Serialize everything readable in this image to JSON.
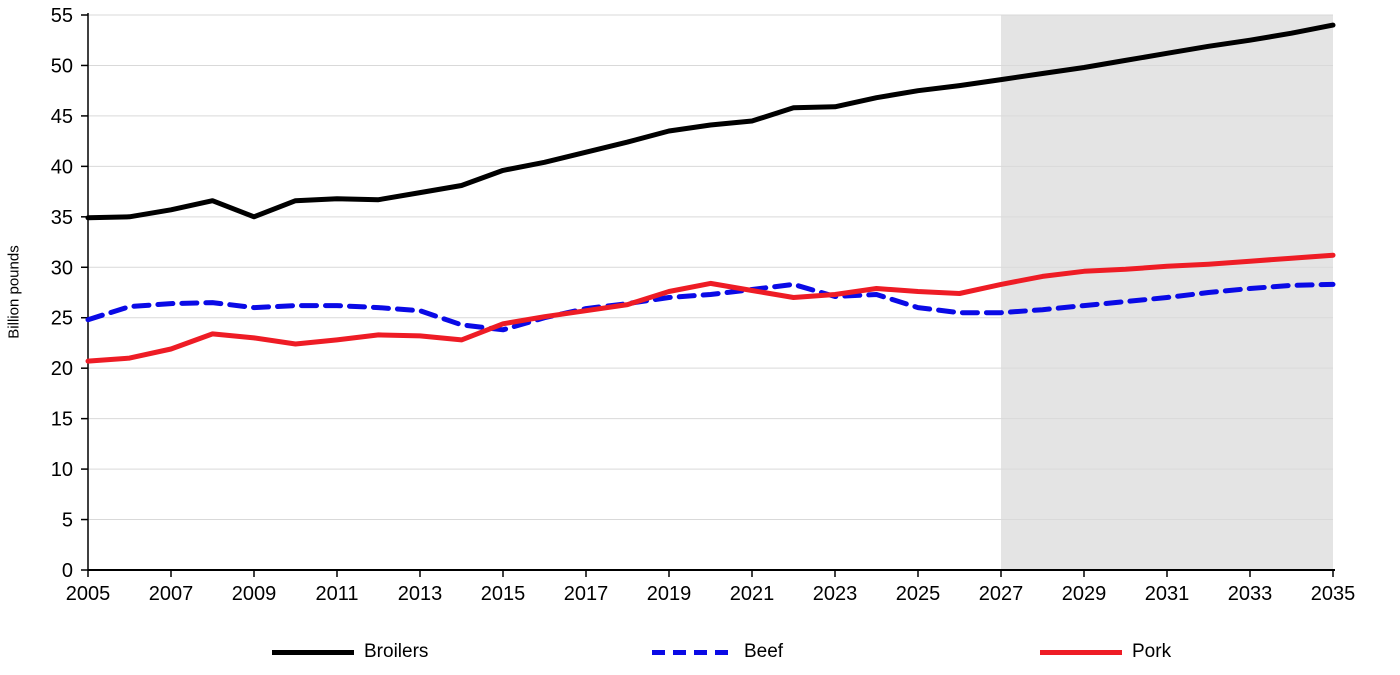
{
  "chart_data": {
    "type": "line",
    "title": "",
    "ylabel": "Billion pounds",
    "xlabel": "",
    "ylim": [
      0,
      55
    ],
    "ytick_step": 5,
    "x": [
      2005,
      2006,
      2007,
      2008,
      2009,
      2010,
      2011,
      2012,
      2013,
      2014,
      2015,
      2016,
      2017,
      2018,
      2019,
      2020,
      2021,
      2022,
      2023,
      2024,
      2025,
      2026,
      2027,
      2028,
      2029,
      2030,
      2031,
      2032,
      2033,
      2034,
      2035
    ],
    "xticks": [
      2005,
      2007,
      2009,
      2011,
      2013,
      2015,
      2017,
      2019,
      2021,
      2023,
      2025,
      2027,
      2029,
      2031,
      2033,
      2035
    ],
    "series": [
      {
        "name": "Broilers",
        "color": "#000000",
        "dashed": false,
        "values": [
          34.9,
          35.0,
          35.7,
          36.6,
          35.0,
          36.6,
          36.8,
          36.7,
          37.4,
          38.1,
          39.6,
          40.4,
          41.4,
          42.4,
          43.5,
          44.1,
          44.5,
          45.8,
          45.9,
          46.8,
          47.5,
          48.0,
          48.6,
          49.2,
          49.8,
          50.5,
          51.2,
          51.9,
          52.5,
          53.2,
          54.0
        ]
      },
      {
        "name": "Beef",
        "color": "#0a0ae6",
        "dashed": true,
        "values": [
          24.8,
          26.1,
          26.4,
          26.5,
          26.0,
          26.2,
          26.2,
          26.0,
          25.7,
          24.3,
          23.8,
          25.0,
          25.9,
          26.4,
          27.0,
          27.3,
          27.8,
          28.3,
          27.1,
          27.3,
          26.0,
          25.5,
          25.5,
          25.8,
          26.2,
          26.6,
          27.0,
          27.5,
          27.9,
          28.2,
          28.3
        ]
      },
      {
        "name": "Pork",
        "color": "#ee1c25",
        "dashed": false,
        "values": [
          20.7,
          21.0,
          21.9,
          23.4,
          23.0,
          22.4,
          22.8,
          23.3,
          23.2,
          22.8,
          24.4,
          25.1,
          25.7,
          26.3,
          27.6,
          28.4,
          27.7,
          27.0,
          27.3,
          27.9,
          27.6,
          27.4,
          28.3,
          29.1,
          29.6,
          29.8,
          30.1,
          30.3,
          30.6,
          30.9,
          31.2
        ]
      }
    ],
    "projection_start": 2027,
    "projection_end": 2035,
    "projection_fill": "#e4e4e4",
    "grid_color": "#d9d9d9",
    "axis_color": "#000000",
    "legend_position": "bottom"
  }
}
